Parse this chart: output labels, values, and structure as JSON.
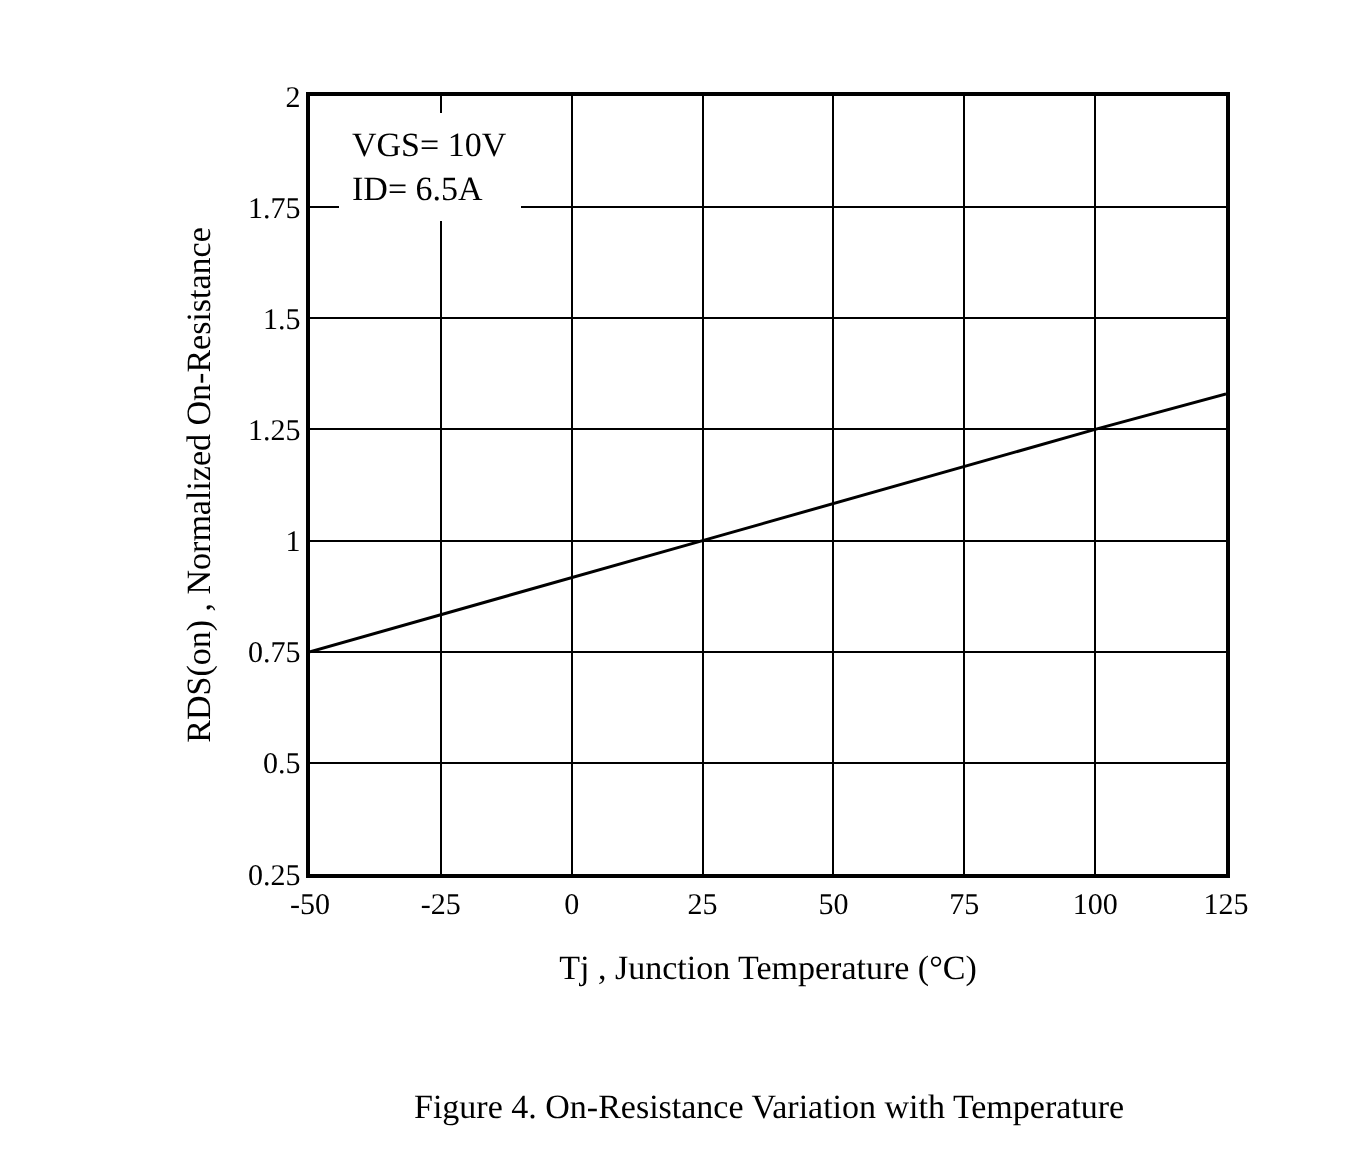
{
  "chart_data": {
    "type": "line",
    "xlabel": "Tj , Junction Temperature (°C)",
    "ylabel": "RDS(on) , Normalized On-Resistance",
    "x": [
      -50,
      25,
      100,
      125
    ],
    "series": [
      {
        "color": "#000000",
        "values": [
          0.75,
          1.0,
          1.25,
          1.33
        ]
      }
    ],
    "xlim": [
      -50,
      125
    ],
    "xticks": [
      -50,
      -25,
      0,
      25,
      50,
      75,
      100,
      125
    ],
    "ylim": [
      0.25,
      2
    ],
    "yticks": [
      0.25,
      0.5,
      0.75,
      1,
      1.25,
      1.5,
      1.75,
      2
    ],
    "grid": true,
    "legend": false,
    "marker": "none",
    "line_style": "solid",
    "annotations": [
      "VGS= 10V\nID= 6.5A",
      "Figure 4. On-Resistance Variation with Temperature"
    ]
  }
}
